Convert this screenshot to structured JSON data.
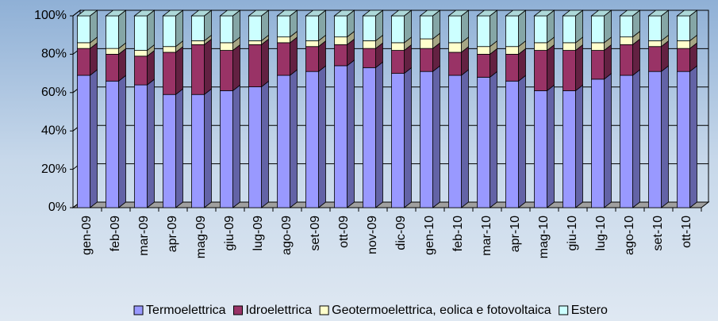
{
  "chart_data": {
    "type": "bar3d_stacked",
    "categories": [
      "gen-09",
      "feb-09",
      "mar-09",
      "apr-09",
      "mag-09",
      "giu-09",
      "lug-09",
      "ago-09",
      "set-09",
      "ott-09",
      "nov-09",
      "dic-09",
      "gen-10",
      "feb-10",
      "mar-10",
      "apr-10",
      "mag-10",
      "giu-10",
      "lug-10",
      "ago-10",
      "set-10",
      "ott-10"
    ],
    "series": [
      {
        "name": "Termoelettrica",
        "color": "#9999ff",
        "values": [
          69,
          66,
          64,
          59,
          59,
          61,
          63,
          69,
          71,
          74,
          73,
          70,
          71,
          69,
          68,
          66,
          61,
          61,
          67,
          69,
          71,
          71
        ]
      },
      {
        "name": "Idroelettrica",
        "color": "#993366",
        "values": [
          14,
          14,
          15,
          22,
          26,
          21,
          22,
          17,
          13,
          11,
          10,
          12,
          12,
          12,
          12,
          14,
          21,
          21,
          15,
          16,
          13,
          12
        ]
      },
      {
        "name": "Geotermoelettrica, eolica e fotovoltaica",
        "color": "#ffffcc",
        "values": [
          3,
          3,
          3,
          3,
          2,
          4,
          2,
          3,
          3,
          4,
          4,
          4,
          5,
          5,
          4,
          4,
          4,
          4,
          4,
          4,
          3,
          4
        ]
      },
      {
        "name": "Estero",
        "color": "#ccffff",
        "values": [
          14,
          17,
          18,
          16,
          13,
          14,
          13,
          11,
          13,
          11,
          13,
          14,
          12,
          14,
          16,
          16,
          14,
          14,
          14,
          11,
          13,
          13
        ]
      }
    ],
    "ylim": [
      0,
      100
    ],
    "yticks": [
      {
        "value": 0,
        "label": "0%"
      },
      {
        "value": 20,
        "label": "20%"
      },
      {
        "value": 40,
        "label": "40%"
      },
      {
        "value": 60,
        "label": "60%"
      },
      {
        "value": 80,
        "label": "80%"
      },
      {
        "value": 100,
        "label": "100%"
      }
    ],
    "grid": true,
    "legend": "bottom"
  }
}
